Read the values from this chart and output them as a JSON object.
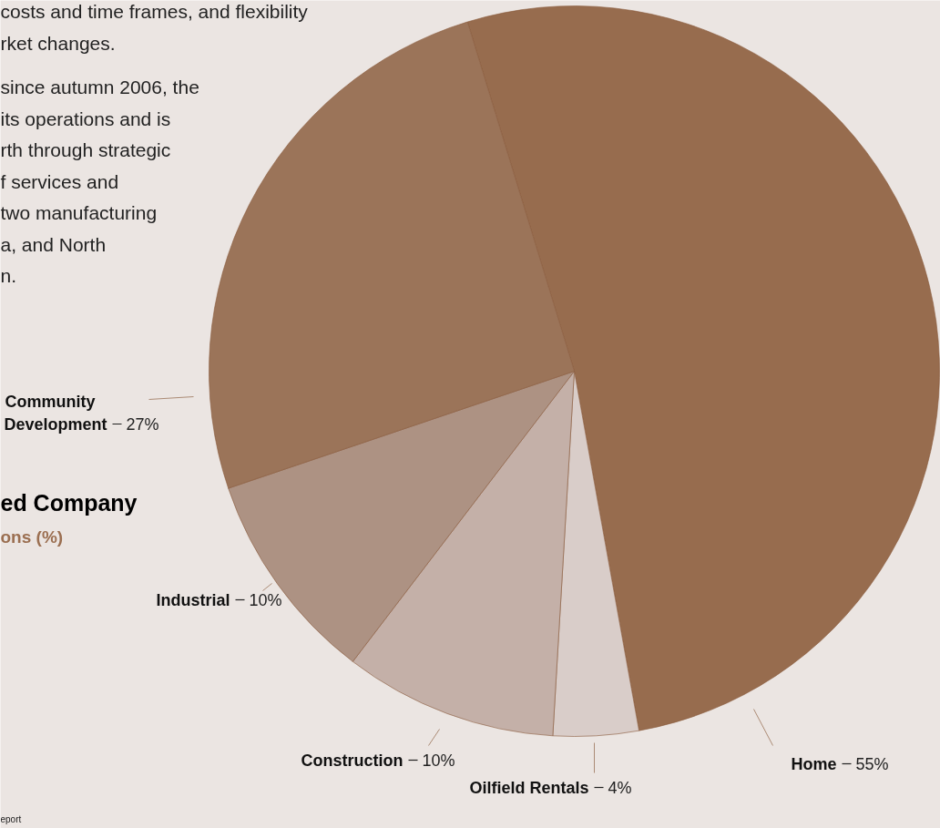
{
  "chart_data": {
    "type": "pie",
    "title": "ed Company",
    "subtitle": "ons (%)",
    "categories": [
      "Home",
      "Oilfield Rentals",
      "Construction",
      "Industrial",
      "Community Development"
    ],
    "values": [
      55,
      4,
      10,
      10,
      27
    ],
    "value_labels": [
      "55%",
      "4%",
      "10%",
      "10%",
      "27%"
    ],
    "colors": [
      "#976c4e",
      "#d9cdc9",
      "#c4b0a8",
      "#ad9283",
      "#9b7459"
    ],
    "annotations": [
      "costs and time frames, and flexibility\nrket changes.",
      "since autumn 2006, the\nits operations and is\nrth through strategic\nf services and\ntwo manufacturing\na, and North\nn.",
      "eport"
    ]
  }
}
